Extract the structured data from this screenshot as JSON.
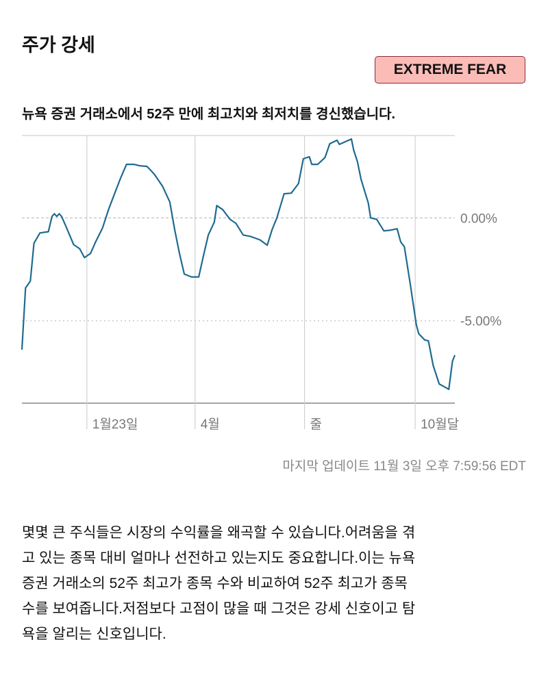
{
  "header": {
    "title": "주가 강세",
    "rating_badge": "EXTREME FEAR",
    "rating_color": "#fbbcb8",
    "subtitle": "뉴욕 증권 거래소에서 52주 만에 최고치와 최저치를 경신했습니다."
  },
  "chart_data": {
    "type": "line",
    "title": "",
    "xlabel": "",
    "ylabel": "",
    "xlim": [
      "2022-11-08",
      "2023-11-03"
    ],
    "ylim": [
      -9,
      4
    ],
    "grid": true,
    "line_color": "#1f6a8f",
    "y_ticks": [
      {
        "value": 0,
        "label": "0.00%"
      },
      {
        "value": -5,
        "label": "-5.00%"
      }
    ],
    "x_ticks": [
      {
        "date": "2023-01-01",
        "label": "1월23일"
      },
      {
        "date": "2023-04-01",
        "label": "4월"
      },
      {
        "date": "2023-07-01",
        "label": "줄"
      },
      {
        "date": "2023-10-01",
        "label": "10월달"
      }
    ],
    "series": [
      {
        "points": [
          [
            "2022-11-08",
            -6.4
          ],
          [
            "2022-11-11",
            -3.4
          ],
          [
            "2022-11-15",
            -3.07
          ],
          [
            "2022-11-18",
            -1.23
          ],
          [
            "2022-11-23",
            -0.73
          ],
          [
            "2022-11-30",
            -0.67
          ],
          [
            "2022-12-03",
            0.07
          ],
          [
            "2022-12-05",
            0.2
          ],
          [
            "2022-12-07",
            0.07
          ],
          [
            "2022-12-09",
            0.2
          ],
          [
            "2022-12-11",
            0.07
          ],
          [
            "2022-12-15",
            -0.47
          ],
          [
            "2022-12-21",
            -1.3
          ],
          [
            "2022-12-26",
            -1.5
          ],
          [
            "2022-12-30",
            -1.93
          ],
          [
            "2023-01-04",
            -1.73
          ],
          [
            "2023-01-08",
            -1.2
          ],
          [
            "2023-01-14",
            -0.5
          ],
          [
            "2023-01-19",
            0.4
          ],
          [
            "2023-01-24",
            1.17
          ],
          [
            "2023-01-29",
            1.93
          ],
          [
            "2023-02-03",
            2.6
          ],
          [
            "2023-02-09",
            2.6
          ],
          [
            "2023-02-14",
            2.53
          ],
          [
            "2023-02-20",
            2.5
          ],
          [
            "2023-02-26",
            2.13
          ],
          [
            "2023-03-05",
            1.53
          ],
          [
            "2023-03-11",
            0.77
          ],
          [
            "2023-03-15",
            -0.57
          ],
          [
            "2023-03-19",
            -1.73
          ],
          [
            "2023-03-23",
            -2.73
          ],
          [
            "2023-03-29",
            -2.87
          ],
          [
            "2023-04-04",
            -2.87
          ],
          [
            "2023-04-08",
            -1.83
          ],
          [
            "2023-04-12",
            -0.83
          ],
          [
            "2023-04-17",
            -0.2
          ],
          [
            "2023-04-19",
            0.6
          ],
          [
            "2023-04-24",
            0.4
          ],
          [
            "2023-04-30",
            -0.07
          ],
          [
            "2023-05-05",
            -0.27
          ],
          [
            "2023-05-11",
            -0.83
          ],
          [
            "2023-05-17",
            -0.9
          ],
          [
            "2023-05-25",
            -1.07
          ],
          [
            "2023-05-31",
            -1.33
          ],
          [
            "2023-06-04",
            -0.57
          ],
          [
            "2023-06-08",
            0.0
          ],
          [
            "2023-06-14",
            1.17
          ],
          [
            "2023-06-20",
            1.2
          ],
          [
            "2023-06-26",
            1.67
          ],
          [
            "2023-06-30",
            2.87
          ],
          [
            "2023-07-05",
            2.97
          ],
          [
            "2023-07-07",
            2.6
          ],
          [
            "2023-07-12",
            2.6
          ],
          [
            "2023-07-18",
            2.93
          ],
          [
            "2023-07-22",
            3.6
          ],
          [
            "2023-07-28",
            3.77
          ],
          [
            "2023-07-30",
            3.57
          ],
          [
            "2023-08-04",
            3.7
          ],
          [
            "2023-08-09",
            3.83
          ],
          [
            "2023-08-11",
            3.27
          ],
          [
            "2023-08-14",
            2.73
          ],
          [
            "2023-08-17",
            1.87
          ],
          [
            "2023-08-23",
            0.73
          ],
          [
            "2023-08-25",
            0.0
          ],
          [
            "2023-08-30",
            -0.07
          ],
          [
            "2023-09-05",
            -0.63
          ],
          [
            "2023-09-10",
            -0.6
          ],
          [
            "2023-09-16",
            -0.53
          ],
          [
            "2023-09-19",
            -1.17
          ],
          [
            "2023-09-22",
            -1.4
          ],
          [
            "2023-09-27",
            -3.23
          ],
          [
            "2023-10-02",
            -5.2
          ],
          [
            "2023-10-04",
            -5.63
          ],
          [
            "2023-10-09",
            -5.93
          ],
          [
            "2023-10-12",
            -5.97
          ],
          [
            "2023-10-16",
            -7.17
          ],
          [
            "2023-10-21",
            -8.07
          ],
          [
            "2023-10-26",
            -8.23
          ],
          [
            "2023-10-29",
            -8.33
          ],
          [
            "2023-11-01",
            -6.97
          ],
          [
            "2023-11-03",
            -6.67
          ]
        ]
      }
    ]
  },
  "footer": {
    "last_updated": "마지막 업데이트 11월 3일 오후 7:59:56 EDT"
  },
  "description": {
    "lines": [
      "몇몇 큰 주식들은 시장의 수익률을 왜곡할 수 있습니다.어려움을 겪",
      "고 있는 종목 대비 얼마나 선전하고 있는지도 중요합니다.이는 뉴욕",
      "증권 거래소의 52주 최고가 종목 수와 비교하여 52주 최고가 종목",
      "수를 보여줍니다.저점보다 고점이 많을 때 그것은 강세 신호이고 탐",
      "욕을 알리는 신호입니다."
    ]
  }
}
